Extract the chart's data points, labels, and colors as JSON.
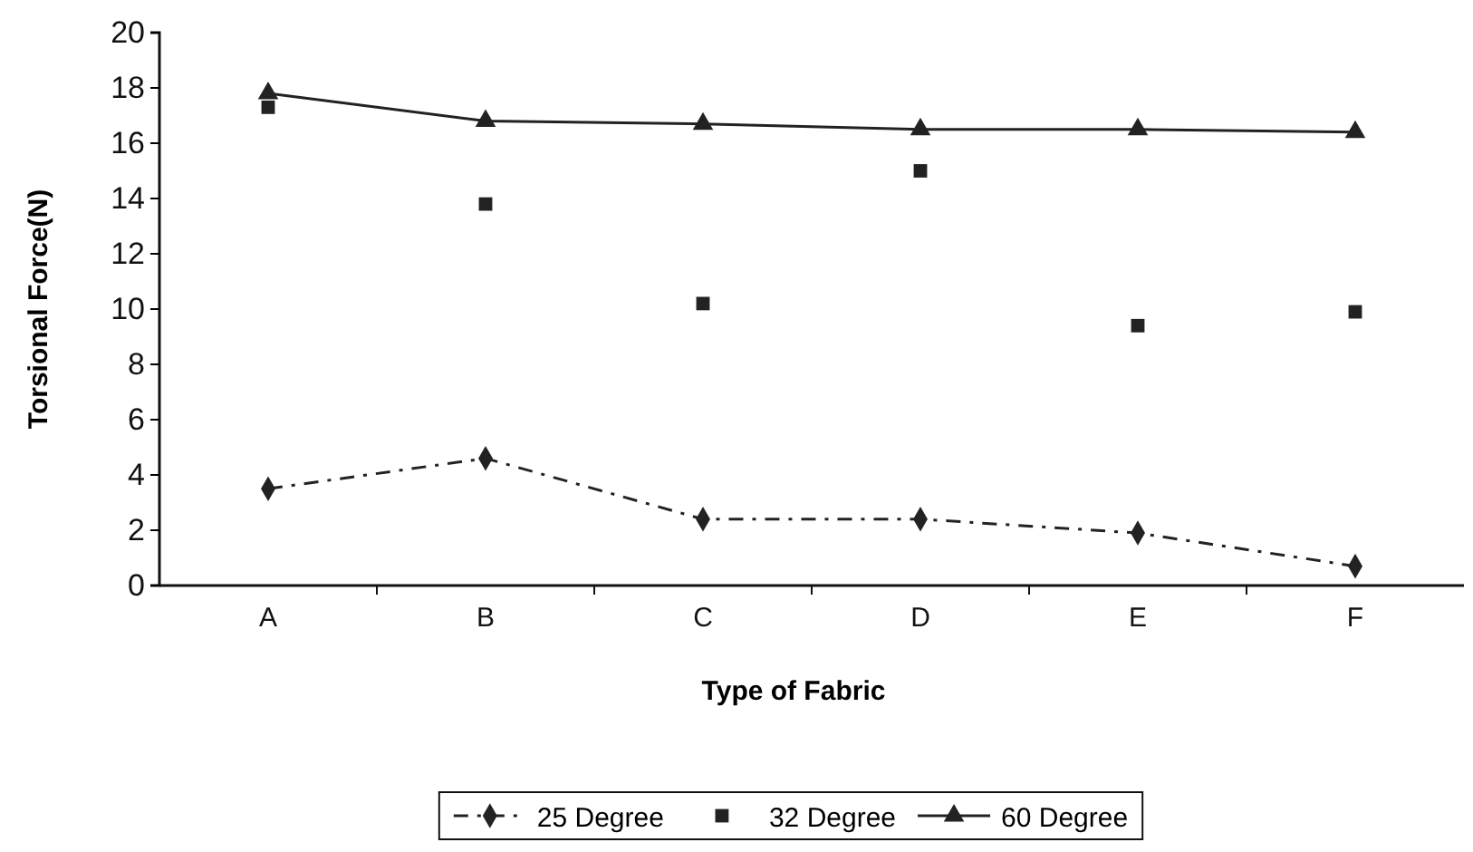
{
  "chart_data": {
    "type": "line",
    "xlabel": "Type of Fabric",
    "ylabel": "Torsional Force(N)",
    "categories": [
      "A",
      "B",
      "C",
      "D",
      "E",
      "F"
    ],
    "ylim": [
      0,
      20
    ],
    "yticks": [
      0,
      2,
      4,
      6,
      8,
      10,
      12,
      14,
      16,
      18,
      20
    ],
    "grid": false,
    "legend": "bottom",
    "series": [
      {
        "name": "25 Degree",
        "color": "#222222",
        "marker": "diamond",
        "line_style": "dashed",
        "values": [
          3.5,
          4.6,
          2.4,
          2.4,
          1.9,
          0.7
        ]
      },
      {
        "name": "32 Degree",
        "type": "scatter",
        "color": "#222222",
        "marker": "square",
        "values": [
          17.3,
          13.8,
          10.2,
          15.0,
          9.4,
          9.9
        ]
      },
      {
        "name": "60 Degree",
        "color": "#222222",
        "marker": "triangle",
        "line_style": "solid",
        "values": [
          17.8,
          16.8,
          16.7,
          16.5,
          16.5,
          16.4
        ]
      }
    ]
  }
}
